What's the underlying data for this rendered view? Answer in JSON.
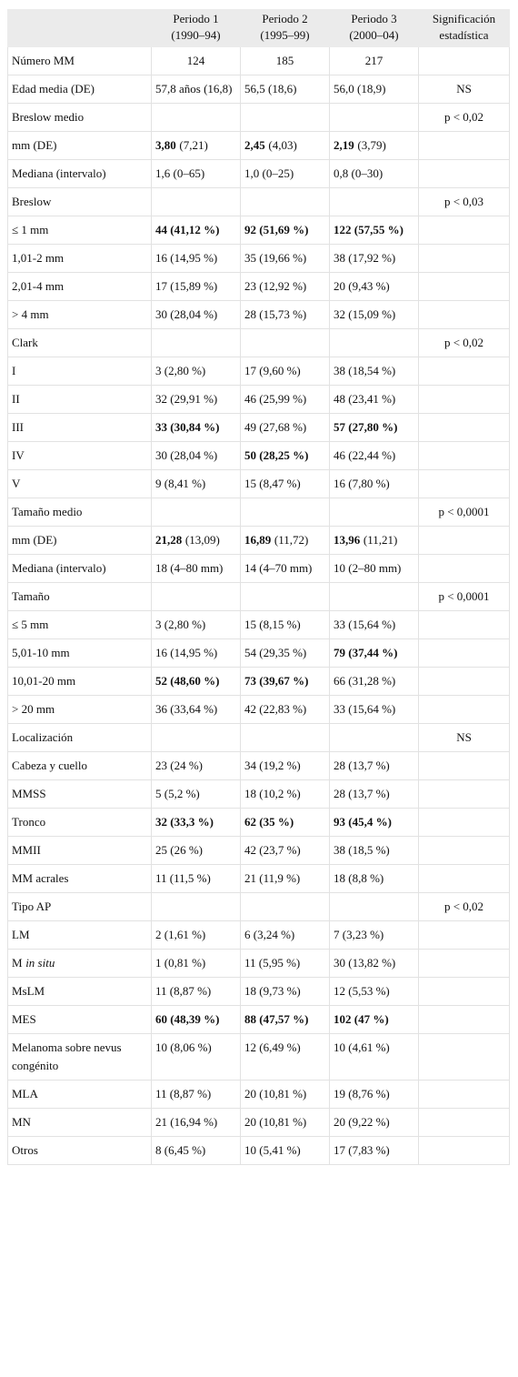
{
  "table": {
    "header": [
      null,
      "Periodo 1 (1990–94)",
      "Periodo 2 (1995–99)",
      "Periodo 3 (2000–04)",
      "Significación estadística"
    ],
    "rows": [
      [
        "Número MM",
        "124",
        "185",
        "217",
        null
      ],
      [
        "Edad media (DE)",
        "57,8 años (16,8)",
        "56,5 (18,6)",
        "56,0 (18,9)",
        "NS"
      ],
      [
        "Breslow medio",
        null,
        null,
        null,
        "p < 0,02"
      ],
      [
        "mm (DE)",
        {
          "b": "3,80",
          "t": "(7,21)"
        },
        {
          "b": "2,45",
          "t": "(4,03)"
        },
        {
          "b": "2,19",
          "t": "(3,79)"
        },
        null
      ],
      [
        "Mediana (intervalo)",
        "1,6 (0–65)",
        "1,0 (0–25)",
        "0,8 (0–30)",
        null
      ],
      [
        "Breslow",
        null,
        null,
        null,
        "p < 0,03"
      ],
      [
        "≤ 1 mm",
        {
          "b": "44 (41,12 %)"
        },
        {
          "b": "92 (51,69 %)"
        },
        {
          "b": "122 (57,55 %)"
        },
        null
      ],
      [
        "1,01-2 mm",
        "16 (14,95 %)",
        "35 (19,66 %)",
        "38 (17,92 %)",
        null
      ],
      [
        "2,01-4 mm",
        "17 (15,89 %)",
        "23 (12,92 %)",
        "20 (9,43 %)",
        null
      ],
      [
        "> 4 mm",
        "30 (28,04 %)",
        "28 (15,73 %)",
        "32 (15,09 %)",
        null
      ],
      [
        "Clark",
        null,
        null,
        null,
        "p < 0,02"
      ],
      [
        "I",
        "3 (2,80 %)",
        "17 (9,60 %)",
        "38 (18,54 %)",
        null
      ],
      [
        "II",
        "32 (29,91 %)",
        "46 (25,99 %)",
        "48 (23,41 %)",
        null
      ],
      [
        "III",
        {
          "b": "33 (30,84 %)"
        },
        "49 (27,68 %)",
        {
          "b": "57 (27,80 %)"
        },
        null
      ],
      [
        "IV",
        "30 (28,04 %)",
        {
          "b": "50 (28,25 %)"
        },
        "46 (22,44 %)",
        null
      ],
      [
        "V",
        "9 (8,41 %)",
        "15 (8,47 %)",
        "16 (7,80 %)",
        null
      ],
      [
        "Tamaño medio",
        null,
        null,
        null,
        "p < 0,0001"
      ],
      [
        "mm (DE)",
        {
          "b": "21,28",
          "t": "(13,09)"
        },
        {
          "b": "16,89",
          "t": "(11,72)"
        },
        {
          "b": "13,96",
          "t": "(11,21)"
        },
        null
      ],
      [
        "Mediana (intervalo)",
        "18 (4–80 mm)",
        "14 (4–70 mm)",
        "10 (2–80 mm)",
        null
      ],
      [
        "Tamaño",
        null,
        null,
        null,
        "p < 0,0001"
      ],
      [
        "≤ 5 mm",
        "3 (2,80 %)",
        "15 (8,15 %)",
        "33 (15,64 %)",
        null
      ],
      [
        "5,01-10 mm",
        "16 (14,95 %)",
        "54 (29,35 %)",
        {
          "b": "79 (37,44 %)"
        },
        null
      ],
      [
        "10,01-20 mm",
        {
          "b": "52 (48,60 %)"
        },
        {
          "b": "73 (39,67 %)"
        },
        "66 (31,28 %)",
        null
      ],
      [
        "> 20 mm",
        "36 (33,64 %)",
        "42 (22,83 %)",
        "33 (15,64 %)",
        null
      ],
      [
        "Localización",
        null,
        null,
        null,
        "NS"
      ],
      [
        "Cabeza y cuello",
        "23 (24 %)",
        "34 (19,2 %)",
        "28 (13,7 %)",
        null
      ],
      [
        "MMSS",
        "5 (5,2 %)",
        "18 (10,2 %)",
        "28 (13,7 %)",
        null
      ],
      [
        "Tronco",
        {
          "b": "32 (33,3 %)"
        },
        {
          "b": "62 (35 %)"
        },
        {
          "b": "93 (45,4 %)"
        },
        null
      ],
      [
        "MMII",
        "25 (26 %)",
        "42 (23,7 %)",
        "38 (18,5 %)",
        null
      ],
      [
        "MM acrales",
        "11 (11,5 %)",
        "21 (11,9 %)",
        "18 (8,8 %)",
        null
      ],
      [
        "Tipo AP",
        null,
        null,
        null,
        "p < 0,02"
      ],
      [
        "LM",
        "2 (1,61 %)",
        "6 (3,24 %)",
        "7 (3,23 %)",
        null
      ],
      [
        {
          "t": "M",
          "i": "in situ"
        },
        "1 (0,81 %)",
        "11 (5,95 %)",
        "30 (13,82 %)",
        null
      ],
      [
        "MsLM",
        "11 (8,87 %)",
        "18 (9,73 %)",
        "12 (5,53 %)",
        null
      ],
      [
        "MES",
        {
          "b": "60 (48,39 %)"
        },
        {
          "b": "88 (47,57 %)"
        },
        {
          "b": "102 (47 %)"
        },
        null
      ],
      [
        "Melanoma sobre nevus congénito",
        "10 (8,06 %)",
        "12 (6,49 %)",
        "10 (4,61 %)",
        null
      ],
      [
        "MLA",
        "11 (8,87 %)",
        "20 (10,81 %)",
        "19 (8,76 %)",
        null
      ],
      [
        "MN",
        "21 (16,94 %)",
        "20 (10,81 %)",
        "20 (9,22 %)",
        null
      ],
      [
        "Otros",
        "8 (6,45 %)",
        "10 (5,41 %)",
        "17 (7,83 %)",
        null
      ]
    ]
  }
}
